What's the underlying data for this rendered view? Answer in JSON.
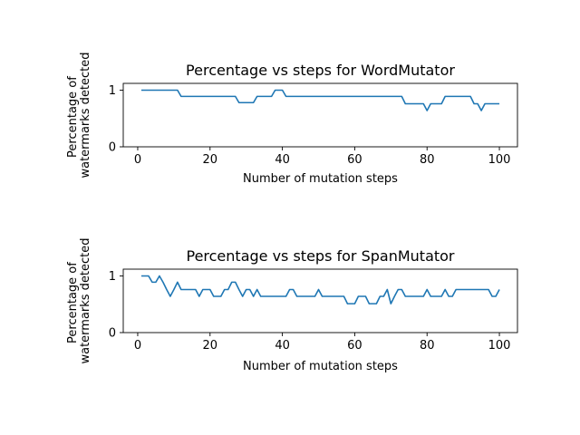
{
  "chart_data": [
    {
      "type": "line",
      "title": "Percentage vs steps for WordMutator",
      "xlabel": "Number of mutation steps",
      "ylabel": [
        "Percentage of",
        "watermarks detected"
      ],
      "xlim": [
        -4,
        105
      ],
      "ylim": [
        0,
        1.12
      ],
      "xticks": [
        0,
        20,
        40,
        60,
        80,
        100
      ],
      "yticks": [
        0,
        1
      ],
      "color": "#1f77b4",
      "grid": false,
      "x": [
        1,
        2,
        3,
        4,
        5,
        6,
        7,
        8,
        9,
        10,
        11,
        12,
        13,
        14,
        15,
        16,
        17,
        18,
        19,
        20,
        21,
        22,
        23,
        24,
        25,
        26,
        27,
        28,
        29,
        30,
        31,
        32,
        33,
        34,
        35,
        36,
        37,
        38,
        39,
        40,
        41,
        42,
        43,
        44,
        45,
        46,
        47,
        48,
        49,
        50,
        51,
        52,
        53,
        54,
        55,
        56,
        57,
        58,
        59,
        60,
        61,
        62,
        63,
        64,
        65,
        66,
        67,
        68,
        69,
        70,
        71,
        72,
        73,
        74,
        75,
        76,
        77,
        78,
        79,
        80,
        81,
        82,
        83,
        84,
        85,
        86,
        87,
        88,
        89,
        90,
        91,
        92,
        93,
        94,
        95,
        96,
        97,
        98,
        99,
        100
      ],
      "y": [
        1,
        1,
        1,
        1,
        1,
        1,
        1,
        1,
        1,
        1,
        1,
        0.89,
        0.89,
        0.89,
        0.89,
        0.89,
        0.89,
        0.89,
        0.89,
        0.89,
        0.89,
        0.89,
        0.89,
        0.89,
        0.89,
        0.89,
        0.89,
        0.78,
        0.78,
        0.78,
        0.78,
        0.78,
        0.89,
        0.89,
        0.89,
        0.89,
        0.89,
        1,
        1,
        1,
        0.89,
        0.89,
        0.89,
        0.89,
        0.89,
        0.89,
        0.89,
        0.89,
        0.89,
        0.89,
        0.89,
        0.89,
        0.89,
        0.89,
        0.89,
        0.89,
        0.89,
        0.89,
        0.89,
        0.89,
        0.89,
        0.89,
        0.89,
        0.89,
        0.89,
        0.89,
        0.89,
        0.89,
        0.89,
        0.89,
        0.89,
        0.89,
        0.89,
        0.76,
        0.76,
        0.76,
        0.76,
        0.76,
        0.76,
        0.64,
        0.76,
        0.76,
        0.76,
        0.76,
        0.89,
        0.89,
        0.89,
        0.89,
        0.89,
        0.89,
        0.89,
        0.89,
        0.76,
        0.76,
        0.64,
        0.76,
        0.76,
        0.76,
        0.76,
        0.76
      ]
    },
    {
      "type": "line",
      "title": "Percentage vs steps for SpanMutator",
      "xlabel": "Number of mutation steps",
      "ylabel": [
        "Percentage of",
        "watermarks detected"
      ],
      "xlim": [
        -4,
        105
      ],
      "ylim": [
        0,
        1.12
      ],
      "xticks": [
        0,
        20,
        40,
        60,
        80,
        100
      ],
      "yticks": [
        0,
        1
      ],
      "color": "#1f77b4",
      "grid": false,
      "x": [
        1,
        2,
        3,
        4,
        5,
        6,
        7,
        8,
        9,
        10,
        11,
        12,
        13,
        14,
        15,
        16,
        17,
        18,
        19,
        20,
        21,
        22,
        23,
        24,
        25,
        26,
        27,
        28,
        29,
        30,
        31,
        32,
        33,
        34,
        35,
        36,
        37,
        38,
        39,
        40,
        41,
        42,
        43,
        44,
        45,
        46,
        47,
        48,
        49,
        50,
        51,
        52,
        53,
        54,
        55,
        56,
        57,
        58,
        59,
        60,
        61,
        62,
        63,
        64,
        65,
        66,
        67,
        68,
        69,
        70,
        71,
        72,
        73,
        74,
        75,
        76,
        77,
        78,
        79,
        80,
        81,
        82,
        83,
        84,
        85,
        86,
        87,
        88,
        89,
        90,
        91,
        92,
        93,
        94,
        95,
        96,
        97,
        98,
        99,
        100
      ],
      "y": [
        1,
        1,
        1,
        0.89,
        0.89,
        1,
        0.89,
        0.76,
        0.64,
        0.76,
        0.89,
        0.76,
        0.76,
        0.76,
        0.76,
        0.76,
        0.64,
        0.76,
        0.76,
        0.76,
        0.64,
        0.64,
        0.64,
        0.76,
        0.76,
        0.89,
        0.89,
        0.76,
        0.64,
        0.76,
        0.76,
        0.64,
        0.76,
        0.64,
        0.64,
        0.64,
        0.64,
        0.64,
        0.64,
        0.64,
        0.64,
        0.76,
        0.76,
        0.64,
        0.64,
        0.64,
        0.64,
        0.64,
        0.64,
        0.76,
        0.64,
        0.64,
        0.64,
        0.64,
        0.64,
        0.64,
        0.64,
        0.51,
        0.51,
        0.51,
        0.64,
        0.64,
        0.64,
        0.51,
        0.51,
        0.51,
        0.64,
        0.64,
        0.76,
        0.51,
        0.64,
        0.76,
        0.76,
        0.64,
        0.64,
        0.64,
        0.64,
        0.64,
        0.64,
        0.76,
        0.64,
        0.64,
        0.64,
        0.64,
        0.76,
        0.64,
        0.64,
        0.76,
        0.76,
        0.76,
        0.76,
        0.76,
        0.76,
        0.76,
        0.76,
        0.76,
        0.76,
        0.64,
        0.64,
        0.76
      ]
    }
  ]
}
